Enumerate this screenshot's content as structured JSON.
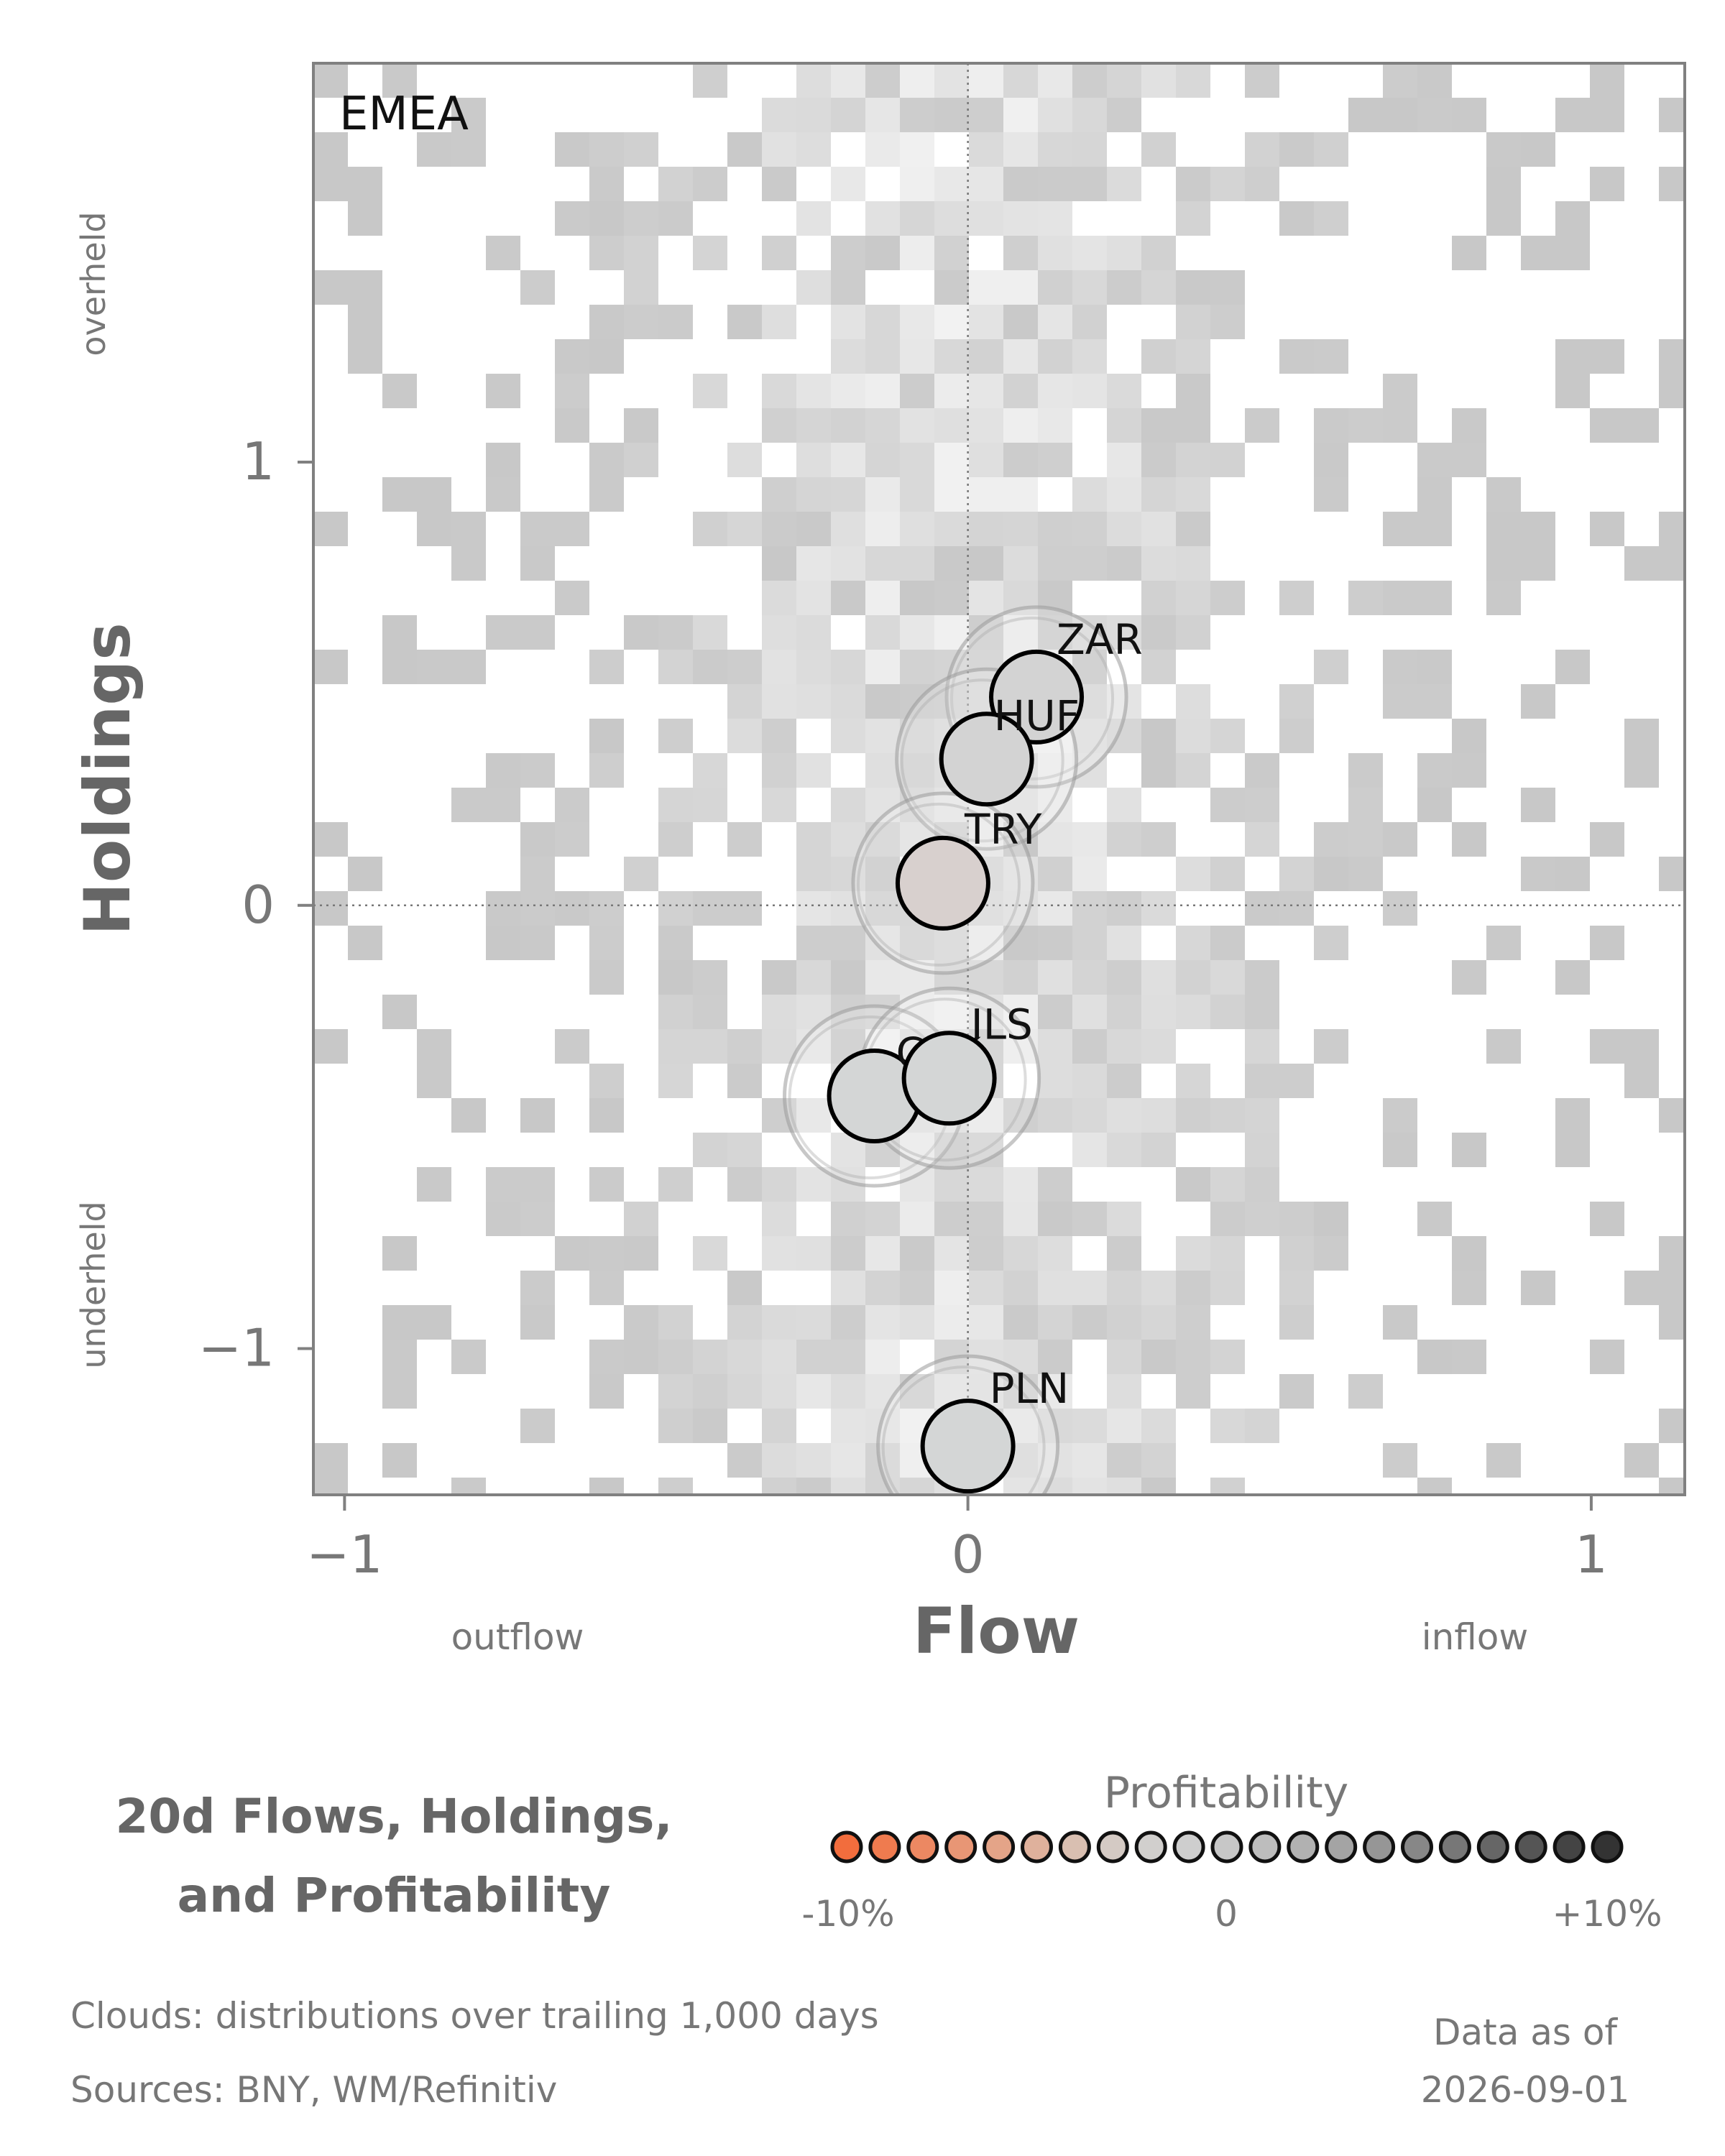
{
  "chart_data": {
    "type": "scatter",
    "panel_label": "EMEA",
    "xlabel": "Flow",
    "ylabel": "Holdings",
    "xlim": [
      -1.05,
      1.15
    ],
    "ylim": [
      -1.33,
      1.9
    ],
    "xticks": [
      {
        "value": -1,
        "label": "−1"
      },
      {
        "value": 0,
        "label": "0"
      },
      {
        "value": 1,
        "label": "1"
      }
    ],
    "yticks": [
      {
        "value": 1,
        "label": "1"
      },
      {
        "value": 0,
        "label": "0"
      },
      {
        "value": -1,
        "label": "−1"
      }
    ],
    "x_annotations": {
      "low": "outflow",
      "high": "inflow"
    },
    "y_annotations": {
      "high": "overheld",
      "low": "underheld"
    },
    "reference_lines": {
      "x": 0,
      "y": 0
    },
    "background": "heatmap cloud of trailing 1,000-day distributions (grey)",
    "points": [
      {
        "label": "ZAR",
        "x": 0.11,
        "y": 0.47,
        "profitability": 0.01,
        "color": "#d3d3d3"
      },
      {
        "label": "HUF",
        "x": 0.03,
        "y": 0.33,
        "profitability": 0.01,
        "color": "#d3d3d3"
      },
      {
        "label": "TRY",
        "x": -0.04,
        "y": 0.05,
        "profitability": -0.01,
        "color": "#d8d0ce"
      },
      {
        "label": "CZK",
        "x": -0.15,
        "y": -0.43,
        "profitability": 0.005,
        "color": "#d4d6d6"
      },
      {
        "label": "ILS",
        "x": -0.03,
        "y": -0.39,
        "profitability": 0.005,
        "color": "#d4d6d6"
      },
      {
        "label": "PLN",
        "x": 0.0,
        "y": -1.22,
        "profitability": 0.005,
        "color": "#d4d6d6"
      }
    ]
  },
  "title_lines": [
    "20d Flows, Holdings,",
    "and Profitability"
  ],
  "legend": {
    "title": "Profitability",
    "labels": [
      "-10%",
      "0",
      "+10%"
    ],
    "colors": [
      "#f26d3d",
      "#ef7b4f",
      "#ec8862",
      "#e89675",
      "#e4a488",
      "#dfb19c",
      "#d9bfb1",
      "#d4cac4",
      "#d1cfcd",
      "#cecece",
      "#c7c7c7",
      "#bdbdbd",
      "#b1b1b1",
      "#a4a4a4",
      "#969696",
      "#878787",
      "#777777",
      "#666666",
      "#555555",
      "#444444",
      "#333333"
    ]
  },
  "footer": {
    "clouds_note": "Clouds:  distributions over trailing 1,000 days",
    "sources": "Sources:  BNY, WM/Refinitiv",
    "data_as_of_label": "Data as of",
    "data_as_of_date": "2026-09-01"
  }
}
